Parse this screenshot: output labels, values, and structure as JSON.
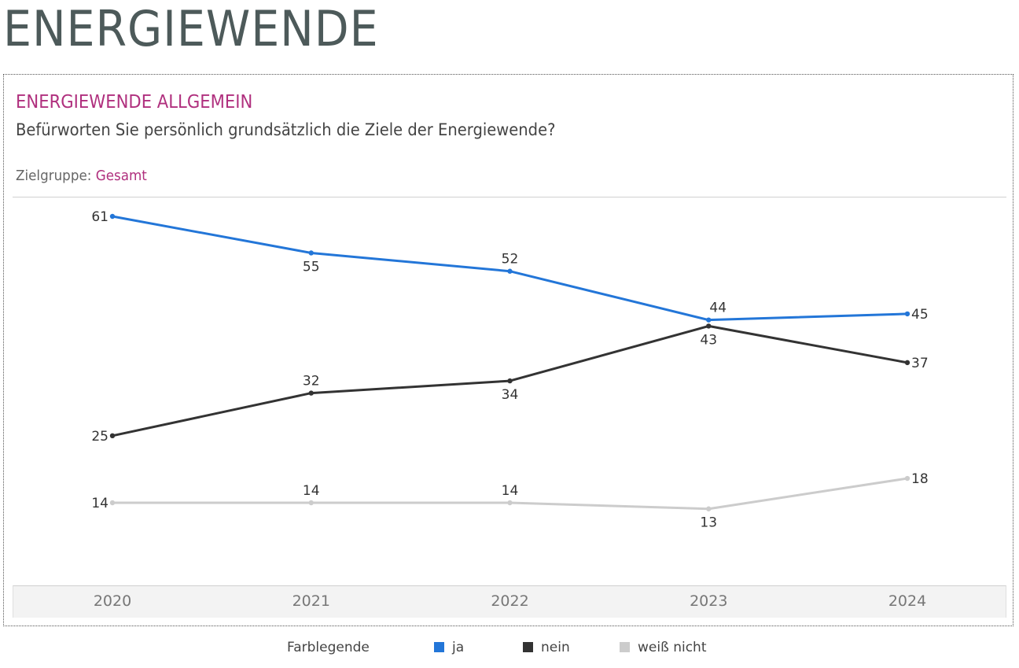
{
  "page": {
    "title": "ENERGIEWENDE"
  },
  "panel": {
    "section_title": "ENERGIEWENDE ALLGEMEIN",
    "question": "Befürworten Sie persönlich grundsätzlich die Ziele der Energiewende?",
    "target_label": "Zielgruppe:",
    "target_value": "Gesamt"
  },
  "legend": {
    "title": "Farblegende",
    "items": [
      {
        "label": "ja",
        "color": "#2376d8"
      },
      {
        "label": "nein",
        "color": "#333333"
      },
      {
        "label": "weiß nicht",
        "color": "#cccccc"
      }
    ]
  },
  "chart_data": {
    "type": "line",
    "title": "Befürworten Sie persönlich grundsätzlich die Ziele der Energiewende?",
    "xlabel": "",
    "ylabel": "",
    "x": [
      "2020",
      "2021",
      "2022",
      "2023",
      "2024"
    ],
    "series": [
      {
        "name": "ja",
        "color": "#2376d8",
        "values": [
          61,
          55,
          52,
          44,
          45
        ],
        "label_pos": [
          "left",
          "below",
          "above",
          "above",
          "right"
        ]
      },
      {
        "name": "nein",
        "color": "#333333",
        "values": [
          25,
          32,
          34,
          43,
          37
        ],
        "label_pos": [
          "left",
          "above",
          "below",
          "below",
          "right"
        ]
      },
      {
        "name": "weiß nicht",
        "color": "#cccccc",
        "values": [
          14,
          14,
          14,
          13,
          18
        ],
        "label_pos": [
          "left",
          "above",
          "above",
          "below",
          "right"
        ]
      }
    ],
    "ylim": [
      0,
      64
    ],
    "grid": false,
    "legend_position": "bottom-center"
  }
}
